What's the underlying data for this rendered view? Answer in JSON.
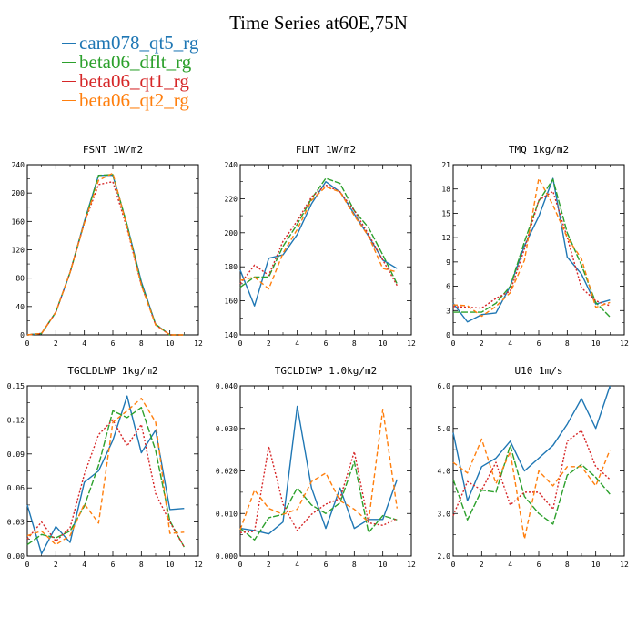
{
  "title": "Time Series at60E,75N",
  "legend": [
    {
      "name": "cam078_qt5_rg",
      "color": "#1f77b4"
    },
    {
      "name": "beta06_dflt_rg",
      "color": "#2ca02c"
    },
    {
      "name": "beta06_qt1_rg",
      "color": "#d62728"
    },
    {
      "name": "beta06_qt2_rg",
      "color": "#ff7f0e"
    }
  ],
  "chart_data": [
    {
      "type": "line",
      "title": "FSNT   1W/m2",
      "x": [
        0,
        1,
        2,
        3,
        4,
        5,
        6,
        7,
        8,
        9,
        10,
        11
      ],
      "xlim": [
        0,
        12
      ],
      "xticks": [
        "0",
        "2",
        "4",
        "6",
        "8",
        "10",
        "12"
      ],
      "ylim": [
        0,
        240
      ],
      "yticks": [
        "0",
        "40",
        "80",
        "120",
        "160",
        "200",
        "240"
      ],
      "series": [
        {
          "name": "cam078_qt5_rg",
          "values": [
            0,
            2,
            32,
            88,
            160,
            225,
            225,
            155,
            75,
            15,
            0,
            0
          ]
        },
        {
          "name": "beta06_dflt_rg",
          "values": [
            0,
            2,
            32,
            88,
            158,
            225,
            226,
            155,
            72,
            15,
            0,
            0
          ]
        },
        {
          "name": "beta06_qt1_rg",
          "values": [
            0,
            2,
            32,
            88,
            158,
            212,
            216,
            150,
            70,
            14,
            0,
            0
          ]
        },
        {
          "name": "beta06_qt2_rg",
          "values": [
            0,
            2,
            32,
            88,
            158,
            218,
            228,
            152,
            70,
            14,
            0,
            0
          ]
        }
      ]
    },
    {
      "type": "line",
      "title": "FLNT   1W/m2",
      "x": [
        0,
        1,
        2,
        3,
        4,
        5,
        6,
        7,
        8,
        9,
        10,
        11
      ],
      "xlim": [
        0,
        12
      ],
      "xticks": [
        "0",
        "2",
        "4",
        "6",
        "8",
        "10",
        "12"
      ],
      "ylim": [
        140,
        240
      ],
      "yticks": [
        "140",
        "160",
        "180",
        "200",
        "220",
        "240"
      ],
      "series": [
        {
          "name": "cam078_qt5_rg",
          "values": [
            178,
            157,
            185,
            187,
            199,
            217,
            230,
            224,
            211,
            198,
            184,
            179
          ]
        },
        {
          "name": "beta06_dflt_rg",
          "values": [
            168,
            174,
            174,
            192,
            205,
            220,
            232,
            229,
            213,
            203,
            187,
            170
          ]
        },
        {
          "name": "beta06_qt1_rg",
          "values": [
            170,
            181,
            175,
            195,
            207,
            221,
            228,
            224,
            213,
            199,
            184,
            169
          ]
        },
        {
          "name": "beta06_qt2_rg",
          "values": [
            172,
            174,
            167,
            188,
            202,
            219,
            227,
            224,
            210,
            198,
            179,
            177
          ]
        }
      ]
    },
    {
      "type": "line",
      "title": "TMQ   1kg/m2",
      "x": [
        0,
        1,
        2,
        3,
        4,
        5,
        6,
        7,
        8,
        9,
        10,
        11
      ],
      "xlim": [
        0,
        12
      ],
      "xticks": [
        "0",
        "2",
        "4",
        "6",
        "8",
        "10",
        "12"
      ],
      "ylim": [
        0,
        21
      ],
      "yticks": [
        "0",
        "3",
        "6",
        "9",
        "12",
        "15",
        "18",
        "21"
      ],
      "series": [
        {
          "name": "cam078_qt5_rg",
          "values": [
            3.9,
            1.6,
            2.5,
            2.7,
            6.0,
            11.0,
            14.6,
            19.3,
            9.6,
            7.5,
            3.8,
            4.3
          ]
        },
        {
          "name": "beta06_dflt_rg",
          "values": [
            2.8,
            2.8,
            2.8,
            3.9,
            6.0,
            11.5,
            16.5,
            19.2,
            12.6,
            8.6,
            4.0,
            2.2
          ]
        },
        {
          "name": "beta06_qt1_rg",
          "values": [
            3.5,
            3.4,
            3.3,
            4.5,
            5.4,
            10.6,
            16.6,
            17.7,
            12.0,
            5.8,
            4.2,
            3.6
          ]
        },
        {
          "name": "beta06_qt2_rg",
          "values": [
            3.7,
            3.6,
            2.3,
            3.5,
            5.2,
            9.2,
            19.3,
            16.0,
            12.0,
            9.4,
            3.4,
            4.0
          ]
        }
      ]
    },
    {
      "type": "line",
      "title": "TGCLDLWP   1kg/m2",
      "x": [
        0,
        1,
        2,
        3,
        4,
        5,
        6,
        7,
        8,
        9,
        10,
        11
      ],
      "xlim": [
        0,
        12
      ],
      "xticks": [
        "0",
        "2",
        "4",
        "6",
        "8",
        "10",
        "12"
      ],
      "ylim": [
        0,
        0.15
      ],
      "yticks": [
        "0.00",
        "0.03",
        "0.06",
        "0.09",
        "0.12",
        "0.15"
      ],
      "series": [
        {
          "name": "cam078_qt5_rg",
          "values": [
            0.045,
            0.002,
            0.026,
            0.012,
            0.065,
            0.075,
            0.102,
            0.141,
            0.091,
            0.111,
            0.041,
            0.042
          ]
        },
        {
          "name": "beta06_dflt_rg",
          "values": [
            0.01,
            0.019,
            0.016,
            0.022,
            0.044,
            0.08,
            0.128,
            0.122,
            0.131,
            0.093,
            0.031,
            0.008
          ]
        },
        {
          "name": "beta06_qt1_rg",
          "values": [
            0.015,
            0.03,
            0.013,
            0.025,
            0.072,
            0.107,
            0.12,
            0.097,
            0.116,
            0.055,
            0.03,
            0.008
          ]
        },
        {
          "name": "beta06_qt2_rg",
          "values": [
            0.018,
            0.022,
            0.01,
            0.018,
            0.046,
            0.029,
            0.118,
            0.128,
            0.139,
            0.118,
            0.02,
            0.021
          ]
        }
      ]
    },
    {
      "type": "line",
      "title": "TGCLDIWP   1.0kg/m2",
      "x": [
        0,
        1,
        2,
        3,
        4,
        5,
        6,
        7,
        8,
        9,
        10,
        11
      ],
      "xlim": [
        0,
        12
      ],
      "xticks": [
        "0",
        "2",
        "4",
        "6",
        "8",
        "10",
        "12"
      ],
      "ylim": [
        0,
        0.04
      ],
      "yticks": [
        "0.000",
        "0.010",
        "0.020",
        "0.030",
        "0.040"
      ],
      "series": [
        {
          "name": "cam078_qt5_rg",
          "values": [
            0.0065,
            0.006,
            0.0052,
            0.008,
            0.0352,
            0.016,
            0.0065,
            0.016,
            0.0065,
            0.0086,
            0.0086,
            0.018
          ]
        },
        {
          "name": "beta06_dflt_rg",
          "values": [
            0.0065,
            0.0038,
            0.009,
            0.0098,
            0.016,
            0.012,
            0.01,
            0.0125,
            0.0222,
            0.0055,
            0.0095,
            0.0085
          ]
        },
        {
          "name": "beta06_qt1_rg",
          "values": [
            0.0055,
            0.0058,
            0.0258,
            0.0122,
            0.006,
            0.0098,
            0.0122,
            0.0135,
            0.0245,
            0.0078,
            0.0072,
            0.0088
          ]
        },
        {
          "name": "beta06_qt2_rg",
          "values": [
            0.0062,
            0.0155,
            0.0112,
            0.0098,
            0.011,
            0.0175,
            0.0195,
            0.013,
            0.011,
            0.008,
            0.0345,
            0.0112
          ]
        }
      ]
    },
    {
      "type": "line",
      "title": "U10   1m/s",
      "x": [
        0,
        1,
        2,
        3,
        4,
        5,
        6,
        7,
        8,
        9,
        10,
        11
      ],
      "xlim": [
        0,
        12
      ],
      "xticks": [
        "0",
        "2",
        "4",
        "6",
        "8",
        "10",
        "12"
      ],
      "ylim": [
        2.0,
        6.0
      ],
      "yticks": [
        "2.0",
        "3.0",
        "4.0",
        "5.0",
        "6.0"
      ],
      "series": [
        {
          "name": "cam078_qt5_rg",
          "values": [
            4.9,
            3.3,
            4.1,
            4.3,
            4.7,
            4.0,
            4.3,
            4.6,
            5.1,
            5.7,
            5.0,
            6.0
          ]
        },
        {
          "name": "beta06_dflt_rg",
          "values": [
            3.8,
            2.85,
            3.55,
            3.5,
            4.6,
            3.4,
            3.0,
            2.75,
            3.9,
            4.15,
            3.85,
            3.45
          ]
        },
        {
          "name": "beta06_qt1_rg",
          "values": [
            2.95,
            3.75,
            3.55,
            4.2,
            3.2,
            3.5,
            3.5,
            3.1,
            4.7,
            4.95,
            4.1,
            3.8
          ]
        },
        {
          "name": "beta06_qt2_rg",
          "values": [
            4.2,
            3.95,
            4.75,
            3.7,
            4.45,
            2.4,
            4.0,
            3.65,
            4.1,
            4.1,
            3.65,
            4.5
          ]
        }
      ]
    }
  ]
}
